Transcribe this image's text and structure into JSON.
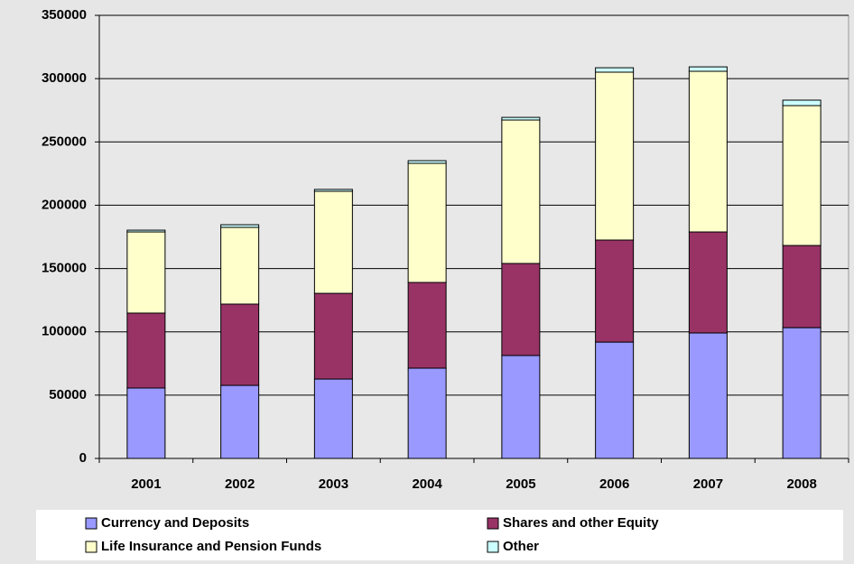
{
  "chart_data": {
    "type": "stacked_bar",
    "categories": [
      "2001",
      "2002",
      "2003",
      "2004",
      "2005",
      "2006",
      "2007",
      "2008"
    ],
    "series": [
      {
        "name": "Currency and Deposits",
        "color": "#9999ff",
        "values": [
          55600,
          57700,
          62700,
          71300,
          81300,
          91900,
          99100,
          103300
        ]
      },
      {
        "name": "Shares and other Equity",
        "color": "#993366",
        "values": [
          59200,
          64200,
          67700,
          67700,
          72700,
          80600,
          79800,
          64900
        ]
      },
      {
        "name": "Life Insurance and Pension Funds",
        "color": "#ffffcc",
        "values": [
          64100,
          60600,
          80600,
          94100,
          113300,
          132600,
          126900,
          110500
        ]
      },
      {
        "name": "Other",
        "color": "#ccffff",
        "values": [
          1400,
          2100,
          1500,
          2100,
          2100,
          3500,
          3500,
          4300
        ]
      }
    ],
    "ylim": [
      0,
      350000
    ],
    "yticks": [
      0,
      50000,
      100000,
      150000,
      200000,
      250000,
      300000,
      350000
    ],
    "grid": true,
    "legend": "bottom"
  }
}
